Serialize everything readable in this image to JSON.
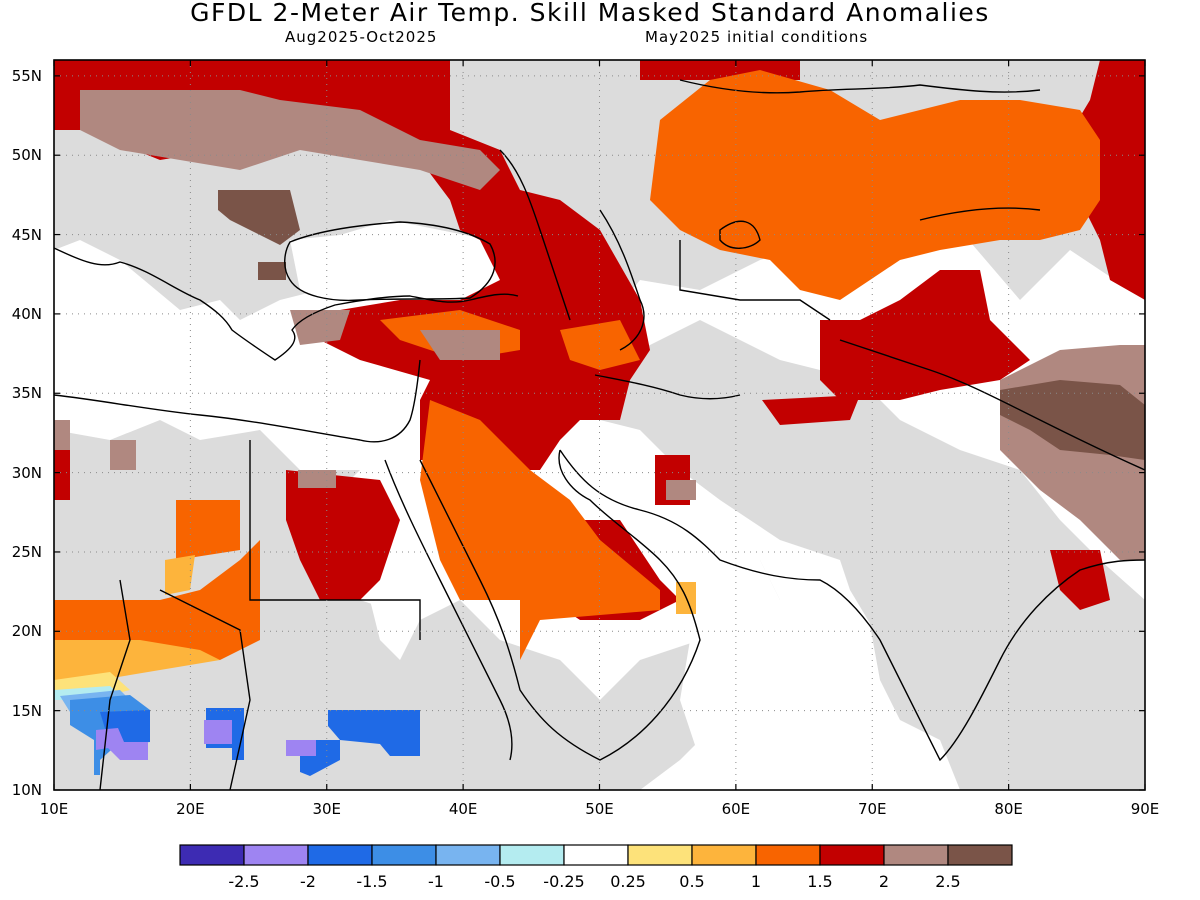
{
  "title": "GFDL 2-Meter Air Temp. Skill Masked Standard Anomalies",
  "subtitle_left": "Aug2025-Oct2025",
  "subtitle_right": "May2025 initial conditions",
  "map": {
    "lon_range": [
      10,
      90
    ],
    "lat_range": [
      10,
      56
    ],
    "grid": "dotted",
    "lat_labels": [
      "10N",
      "15N",
      "20N",
      "25N",
      "30N",
      "35N",
      "40N",
      "45N",
      "50N",
      "55N"
    ],
    "lon_labels": [
      "10E",
      "20E",
      "30E",
      "40E",
      "50E",
      "60E",
      "70E",
      "80E",
      "90E"
    ]
  },
  "colorbar": {
    "labels": [
      "-2.5",
      "-2",
      "-1.5",
      "-1",
      "-0.5",
      "-0.25",
      "0.25",
      "0.5",
      "1",
      "1.5",
      "2",
      "2.5"
    ],
    "colors": [
      "#3d2bb3",
      "#9e84f2",
      "#1f6ae6",
      "#3d8ee6",
      "#78b4f0",
      "#b4ecf0",
      "#ffffff",
      "#fde27a",
      "#fdb43c",
      "#f86400",
      "#c20000",
      "#b08880",
      "#7a5448"
    ]
  },
  "colors": {
    "masked": "#dcdcdc",
    "land_outline": "#000000"
  }
}
